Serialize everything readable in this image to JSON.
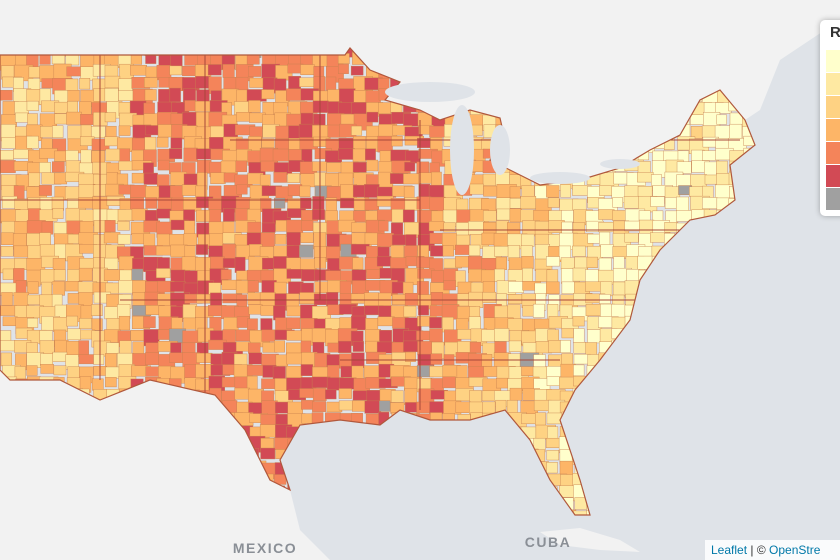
{
  "map": {
    "labels": {
      "mexico": "MEXICO",
      "cuba": "CUBA"
    },
    "legend": {
      "title": "R",
      "colors": [
        "#ffffcc",
        "#fee9a2",
        "#fed283",
        "#fdb567",
        "#f4845a",
        "#d24a55",
        "#a0a0a0"
      ]
    },
    "attribution": {
      "leaflet": "Leaflet",
      "separator": "| ©",
      "osm": "OpenStre"
    }
  }
}
